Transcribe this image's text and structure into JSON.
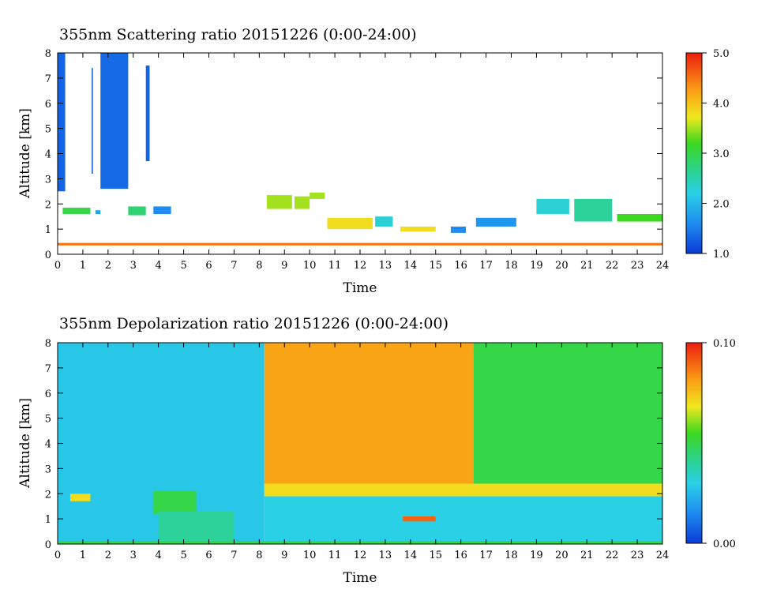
{
  "chart_data": [
    {
      "type": "heatmap",
      "title": "355nm Scattering ratio  20151226 (0:00-24:00)",
      "xlabel": "Time",
      "ylabel": "Altitude [km]",
      "xlim": [
        0,
        24
      ],
      "ylim": [
        0,
        8
      ],
      "x_ticks": [
        "0",
        "1",
        "2",
        "3",
        "4",
        "5",
        "6",
        "7",
        "8",
        "9",
        "10",
        "11",
        "12",
        "13",
        "14",
        "15",
        "16",
        "17",
        "18",
        "19",
        "20",
        "21",
        "22",
        "23",
        "24"
      ],
      "y_ticks": [
        "0",
        "1",
        "2",
        "3",
        "4",
        "5",
        "6",
        "7",
        "8"
      ],
      "colorbar": {
        "range": [
          1.0,
          5.0
        ],
        "tick_values": [
          1.0,
          2.0,
          3.0,
          4.0,
          5.0
        ],
        "tick_labels": [
          "1.0",
          "2.0",
          "3.0",
          "4.0",
          "5.0"
        ]
      },
      "features": [
        {
          "t0": 0.0,
          "t1": 0.3,
          "z0": 2.5,
          "z1": 8.0,
          "value": 1.3
        },
        {
          "t0": 1.35,
          "t1": 1.4,
          "z0": 3.2,
          "z1": 7.4,
          "value": 1.3
        },
        {
          "t0": 1.7,
          "t1": 2.8,
          "z0": 2.6,
          "z1": 8.0,
          "value": 1.35
        },
        {
          "t0": 3.5,
          "t1": 3.65,
          "z0": 3.7,
          "z1": 7.5,
          "value": 1.3
        },
        {
          "t0": 0.2,
          "t1": 1.3,
          "z0": 1.6,
          "z1": 1.85,
          "value": 3.0
        },
        {
          "t0": 1.5,
          "t1": 1.7,
          "z0": 1.6,
          "z1": 1.75,
          "value": 1.8
        },
        {
          "t0": 2.8,
          "t1": 3.5,
          "z0": 1.55,
          "z1": 1.9,
          "value": 2.8
        },
        {
          "t0": 3.8,
          "t1": 4.5,
          "z0": 1.6,
          "z1": 1.9,
          "value": 1.6
        },
        {
          "t0": 8.3,
          "t1": 9.3,
          "z0": 1.8,
          "z1": 2.35,
          "value": 3.5
        },
        {
          "t0": 9.4,
          "t1": 10.0,
          "z0": 1.8,
          "z1": 2.3,
          "value": 3.5
        },
        {
          "t0": 10.0,
          "t1": 10.6,
          "z0": 2.2,
          "z1": 2.45,
          "value": 3.5
        },
        {
          "t0": 10.7,
          "t1": 12.5,
          "z0": 1.0,
          "z1": 1.45,
          "value": 3.8
        },
        {
          "t0": 12.6,
          "t1": 13.3,
          "z0": 1.1,
          "z1": 1.5,
          "value": 2.3
        },
        {
          "t0": 13.6,
          "t1": 15.0,
          "z0": 0.9,
          "z1": 1.1,
          "value": 3.8
        },
        {
          "t0": 15.6,
          "t1": 16.2,
          "z0": 0.85,
          "z1": 1.1,
          "value": 1.6
        },
        {
          "t0": 16.6,
          "t1": 18.2,
          "z0": 1.1,
          "z1": 1.45,
          "value": 1.7
        },
        {
          "t0": 19.0,
          "t1": 20.3,
          "z0": 1.6,
          "z1": 2.2,
          "value": 2.3
        },
        {
          "t0": 20.5,
          "t1": 22.0,
          "z0": 1.3,
          "z1": 2.2,
          "value": 2.6
        },
        {
          "t0": 22.2,
          "t1": 24.0,
          "z0": 1.3,
          "z1": 1.6,
          "value": 3.2
        },
        {
          "t0": 0.0,
          "t1": 24.0,
          "z0": 0.35,
          "z1": 0.45,
          "value": 4.5
        }
      ]
    },
    {
      "type": "heatmap",
      "title": "355nm Depolarization ratio  20151226 (0:00-24:00)",
      "xlabel": "Time",
      "ylabel": "Altitude [km]",
      "xlim": [
        0,
        24
      ],
      "ylim": [
        0,
        8
      ],
      "x_ticks": [
        "0",
        "1",
        "2",
        "3",
        "4",
        "5",
        "6",
        "7",
        "8",
        "9",
        "10",
        "11",
        "12",
        "13",
        "14",
        "15",
        "16",
        "17",
        "18",
        "19",
        "20",
        "21",
        "22",
        "23",
        "24"
      ],
      "y_ticks": [
        "0",
        "1",
        "2",
        "3",
        "4",
        "5",
        "6",
        "7",
        "8"
      ],
      "colorbar": {
        "range": [
          0.0,
          0.1
        ],
        "tick_values": [
          0.0,
          0.1
        ],
        "tick_labels": [
          "0.00",
          "0.10"
        ]
      },
      "features": [
        {
          "t0": 0.0,
          "t1": 8.2,
          "z0": 0.0,
          "z1": 8.0,
          "value": 0.028
        },
        {
          "t0": 8.2,
          "t1": 16.5,
          "z0": 2.3,
          "z1": 8.0,
          "value": 0.08
        },
        {
          "t0": 16.5,
          "t1": 24.0,
          "z0": 2.3,
          "z1": 8.0,
          "value": 0.05
        },
        {
          "t0": 8.2,
          "t1": 24.0,
          "z0": 0.0,
          "z1": 1.9,
          "value": 0.03
        },
        {
          "t0": 8.2,
          "t1": 24.0,
          "z0": 1.9,
          "z1": 2.4,
          "value": 0.07
        },
        {
          "t0": 3.8,
          "t1": 5.5,
          "z0": 1.2,
          "z1": 2.1,
          "value": 0.05
        },
        {
          "t0": 4.0,
          "t1": 7.0,
          "z0": 0.1,
          "z1": 1.3,
          "value": 0.04
        },
        {
          "t0": 0.0,
          "t1": 24.0,
          "z0": 0.0,
          "z1": 0.12,
          "value": 0.05
        },
        {
          "t0": 0.5,
          "t1": 1.3,
          "z0": 1.7,
          "z1": 2.0,
          "value": 0.07
        },
        {
          "t0": 13.7,
          "t1": 15.0,
          "z0": 0.9,
          "z1": 1.1,
          "value": 0.09
        }
      ]
    }
  ]
}
